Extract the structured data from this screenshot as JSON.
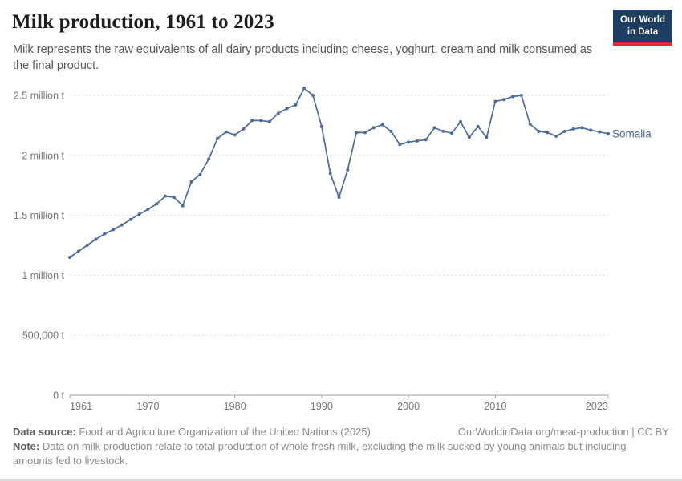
{
  "header": {
    "title": "Milk production, 1961 to 2023",
    "subtitle": "Milk represents the raw equivalents of all dairy products including cheese, yoghurt, cream and milk consumed as the final product.",
    "logo_line1": "Our World",
    "logo_line2": "in Data",
    "logo_bg": "#1d3d63",
    "logo_accent": "#dc2f2f"
  },
  "chart_data": {
    "type": "line",
    "title": "Milk production, 1961 to 2023",
    "unit": "tonnes",
    "xlim": [
      1961,
      2023
    ],
    "ylim": [
      0,
      2500000
    ],
    "grid": "horizontal-dashed",
    "legend_position": "end-of-line",
    "xticks": [
      {
        "v": 1961,
        "label": "1961"
      },
      {
        "v": 1970,
        "label": "1970"
      },
      {
        "v": 1980,
        "label": "1980"
      },
      {
        "v": 1990,
        "label": "1990"
      },
      {
        "v": 2000,
        "label": "2000"
      },
      {
        "v": 2010,
        "label": "2010"
      },
      {
        "v": 2023,
        "label": "2023"
      }
    ],
    "yticks": [
      {
        "v": 0,
        "label": "0 t"
      },
      {
        "v": 500000,
        "label": "500,000 t"
      },
      {
        "v": 1000000,
        "label": "1 million t"
      },
      {
        "v": 1500000,
        "label": "1.5 million t"
      },
      {
        "v": 2000000,
        "label": "2 million t"
      },
      {
        "v": 2500000,
        "label": "2.5 million t"
      }
    ],
    "series": [
      {
        "name": "Somalia",
        "color": "#4c6a9c",
        "x": [
          1961,
          1962,
          1963,
          1964,
          1965,
          1966,
          1967,
          1968,
          1969,
          1970,
          1971,
          1972,
          1973,
          1974,
          1975,
          1976,
          1977,
          1978,
          1979,
          1980,
          1981,
          1982,
          1983,
          1984,
          1985,
          1986,
          1987,
          1988,
          1989,
          1990,
          1991,
          1992,
          1993,
          1994,
          1995,
          1996,
          1997,
          1998,
          1999,
          2000,
          2001,
          2002,
          2003,
          2004,
          2005,
          2006,
          2007,
          2008,
          2009,
          2010,
          2011,
          2012,
          2013,
          2014,
          2015,
          2016,
          2017,
          2018,
          2019,
          2020,
          2021,
          2022,
          2023
        ],
        "values": [
          1150000,
          1200000,
          1250000,
          1300000,
          1345000,
          1380000,
          1420000,
          1465000,
          1510000,
          1550000,
          1595000,
          1660000,
          1650000,
          1580000,
          1780000,
          1840000,
          1970000,
          2140000,
          2195000,
          2170000,
          2220000,
          2290000,
          2290000,
          2280000,
          2350000,
          2390000,
          2420000,
          2560000,
          2500000,
          2240000,
          1850000,
          1650000,
          1880000,
          2190000,
          2190000,
          2230000,
          2255000,
          2200000,
          2090000,
          2110000,
          2120000,
          2130000,
          2230000,
          2200000,
          2185000,
          2280000,
          2150000,
          2240000,
          2150000,
          2450000,
          2465000,
          2490000,
          2500000,
          2260000,
          2200000,
          2190000,
          2160000,
          2200000,
          2220000,
          2230000,
          2210000,
          2195000,
          2180000
        ]
      }
    ]
  },
  "footer": {
    "source_label": "Data source:",
    "source_text": "Food and Agriculture Organization of the United Nations (2025)",
    "attribution": "OurWorldinData.org/meat-production | CC BY",
    "note_label": "Note:",
    "note_text": "Data on milk production relate to total production of whole fresh milk, excluding the milk sucked by young animals but including amounts fed to livestock."
  },
  "colors": {
    "line": "#4c6a9c",
    "gridline": "#dcdcdc",
    "axis": "#a3a3a3",
    "tick_label": "#757575"
  }
}
